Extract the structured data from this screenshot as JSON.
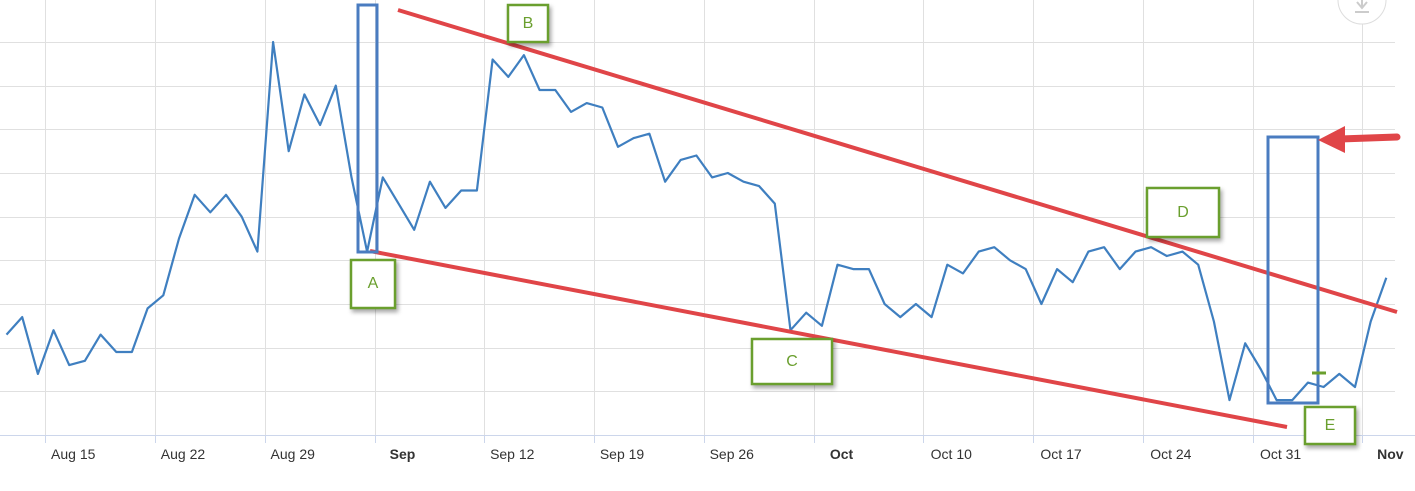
{
  "chart_data": {
    "type": "line",
    "categories": [
      null,
      null,
      null,
      null,
      "Aug 15",
      null,
      null,
      null,
      null,
      null,
      null,
      "Aug 22",
      null,
      null,
      null,
      null,
      null,
      null,
      "Aug 29",
      null,
      null,
      null,
      null,
      null,
      null,
      "Sep",
      null,
      null,
      null,
      null,
      null,
      null,
      "Sep 12",
      null,
      null,
      null,
      null,
      null,
      null,
      "Sep 19",
      null,
      null,
      null,
      null,
      null,
      null,
      "Sep 26",
      null,
      null,
      null,
      null,
      null,
      null,
      "Oct",
      null,
      null,
      null,
      null,
      null,
      null,
      "Oct 10",
      null,
      null,
      null,
      null,
      null,
      null,
      "Oct 17",
      null,
      null,
      null,
      null,
      null,
      null,
      "Oct 24",
      null,
      null,
      null,
      null,
      null,
      null,
      "Oct 31",
      null,
      null,
      null,
      null,
      null,
      null,
      "Nov"
    ],
    "series": [
      {
        "color": "#3f7fc0",
        "values": [
          2.3,
          2.7,
          1.4,
          2.4,
          1.6,
          1.7,
          2.3,
          1.9,
          1.9,
          2.9,
          3.2,
          4.5,
          5.5,
          5.1,
          5.5,
          5.0,
          4.2,
          9.0,
          6.5,
          7.8,
          7.1,
          8.0,
          5.9,
          4.2,
          5.9,
          5.3,
          4.7,
          5.8,
          5.2,
          5.6,
          5.6,
          8.6,
          8.2,
          8.7,
          7.9,
          7.9,
          7.4,
          7.6,
          7.5,
          6.6,
          6.8,
          6.9,
          5.8,
          6.3,
          6.4,
          5.9,
          6.0,
          5.8,
          5.7,
          5.3,
          2.4,
          2.8,
          2.5,
          3.9,
          3.8,
          3.8,
          3.0,
          2.7,
          3.0,
          2.7,
          3.9,
          3.7,
          4.2,
          4.3,
          4.0,
          3.8,
          3.0,
          3.8,
          3.5,
          4.2,
          4.3,
          3.8,
          4.2,
          4.3,
          4.1,
          4.2,
          3.9,
          2.6,
          0.8,
          2.1,
          1.5,
          0.8,
          0.8,
          1.2,
          1.1,
          1.4,
          1.1,
          2.6,
          3.6
        ]
      }
    ],
    "ylim": [
      0,
      9
    ],
    "yticks": [
      1,
      2,
      3,
      4,
      5,
      6,
      7,
      8,
      9
    ],
    "grid": true,
    "annotations": [
      "A",
      "B",
      "C",
      "D",
      "E"
    ]
  }
}
